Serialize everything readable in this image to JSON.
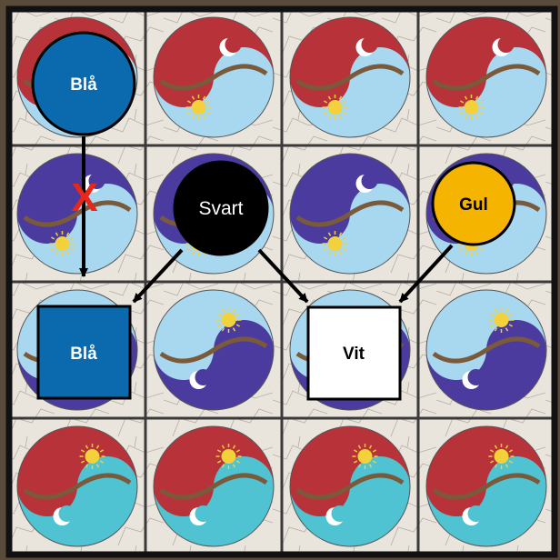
{
  "board": {
    "rows": 4,
    "cols": 4,
    "tiles": [
      [
        {
          "top_color": "red",
          "bottom_color": "lightblue",
          "top_icon": "moon",
          "bottom_icon": "sun"
        },
        {
          "top_color": "red",
          "bottom_color": "lightblue",
          "top_icon": "moon",
          "bottom_icon": "sun"
        },
        {
          "top_color": "red",
          "bottom_color": "lightblue",
          "top_icon": "moon",
          "bottom_icon": "sun"
        },
        {
          "top_color": "red",
          "bottom_color": "lightblue",
          "top_icon": "moon",
          "bottom_icon": "sun"
        }
      ],
      [
        {
          "top_color": "purple",
          "bottom_color": "lightblue",
          "top_icon": "moon",
          "bottom_icon": "sun"
        },
        {
          "top_color": "purple",
          "bottom_color": "lightblue",
          "top_icon": "moon",
          "bottom_icon": "sun"
        },
        {
          "top_color": "purple",
          "bottom_color": "lightblue",
          "top_icon": "moon",
          "bottom_icon": "sun"
        },
        {
          "top_color": "purple",
          "bottom_color": "lightblue",
          "top_icon": "moon",
          "bottom_icon": "sun"
        }
      ],
      [
        {
          "top_color": "lightblue",
          "bottom_color": "purple",
          "top_icon": "sun",
          "bottom_icon": "moon"
        },
        {
          "top_color": "lightblue",
          "bottom_color": "purple",
          "top_icon": "sun",
          "bottom_icon": "moon"
        },
        {
          "top_color": "lightblue",
          "bottom_color": "purple",
          "top_icon": "sun",
          "bottom_icon": "moon"
        },
        {
          "top_color": "lightblue",
          "bottom_color": "purple",
          "top_icon": "sun",
          "bottom_icon": "moon"
        }
      ],
      [
        {
          "top_color": "red",
          "bottom_color": "cyan",
          "top_icon": "sun",
          "bottom_icon": "moon"
        },
        {
          "top_color": "red",
          "bottom_color": "cyan",
          "top_icon": "sun",
          "bottom_icon": "moon"
        },
        {
          "top_color": "red",
          "bottom_color": "cyan",
          "top_icon": "sun",
          "bottom_icon": "moon"
        },
        {
          "top_color": "red",
          "bottom_color": "cyan",
          "top_icon": "sun",
          "bottom_icon": "moon"
        }
      ]
    ]
  },
  "tokens": {
    "bla_circle": {
      "label": "Blå",
      "fill": "#0a6aad",
      "text_color": "#ffffff",
      "shape": "circle"
    },
    "svart_circle": {
      "label": "Svart",
      "fill": "#000000",
      "text_color": "#ffffff",
      "shape": "circle"
    },
    "gul_circle": {
      "label": "Gul",
      "fill": "#f5b400",
      "text_color": "#000000",
      "shape": "circle"
    },
    "bla_square": {
      "label": "Blå",
      "fill": "#0a6aad",
      "text_color": "#ffffff",
      "shape": "square"
    },
    "vit_square": {
      "label": "Vit",
      "fill": "#ffffff",
      "text_color": "#000000",
      "shape": "square"
    }
  },
  "blocked_marker": {
    "label": "X",
    "color": "#e8271b"
  },
  "colors": {
    "grid": "#3a3a3a",
    "frame": "#111111",
    "paper": "#e9e4dc",
    "red": "#b8323a",
    "purple": "#4b3b9e",
    "lightblue": "#a8d8ef",
    "cyan": "#4fc3d2",
    "pink": "#e9a3c9",
    "green": "#3f8a4c",
    "tree": "#7a5a3a",
    "sun": "#f2d13a",
    "moon": "#ffffff"
  }
}
